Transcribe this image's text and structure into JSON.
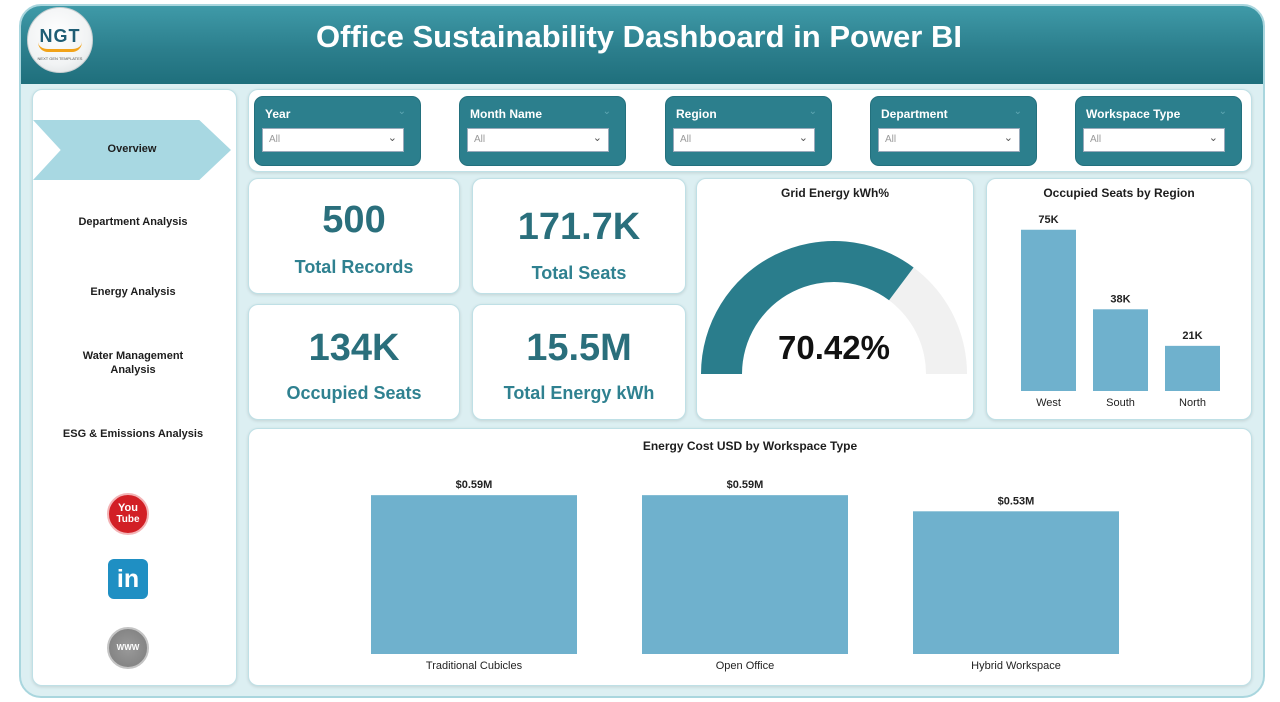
{
  "header": {
    "title": "Office Sustainability Dashboard in Power BI",
    "logo_text": "NGT",
    "logo_subtext": "NEXT GEN TEMPLATES"
  },
  "sidebar": {
    "items": [
      {
        "label": "Overview",
        "active": true
      },
      {
        "label": "Department Analysis"
      },
      {
        "label": "Energy Analysis"
      },
      {
        "label": "Water Management Analysis"
      },
      {
        "label": "ESG & Emissions Analysis"
      }
    ],
    "social": {
      "youtube_top": "You",
      "youtube_bottom": "Tube",
      "linkedin": "in",
      "web": "WWW"
    }
  },
  "filters": [
    {
      "label": "Year",
      "value": "All"
    },
    {
      "label": "Month Name",
      "value": "All"
    },
    {
      "label": "Region",
      "value": "All"
    },
    {
      "label": "Department",
      "value": "All"
    },
    {
      "label": "Workspace Type",
      "value": "All"
    }
  ],
  "kpis": {
    "total_records": {
      "value": "500",
      "label": "Total Records"
    },
    "total_seats": {
      "value": "171.7K",
      "label": "Total Seats"
    },
    "occupied_seats": {
      "value": "134K",
      "label": "Occupied Seats"
    },
    "total_energy": {
      "value": "15.5M",
      "label": "Total Energy kWh"
    }
  },
  "colors": {
    "accent": "#2c7f8d",
    "bar": "#6fb1cd",
    "gauge_fill": "#2a7d8c",
    "gauge_track": "#f1f1f1"
  },
  "chart_data": [
    {
      "type": "gauge",
      "title": "Grid Energy kWh%",
      "value": 70.42,
      "max": 100,
      "display": "70.42%"
    },
    {
      "type": "bar",
      "title": "Occupied Seats by Region",
      "categories": [
        "West",
        "South",
        "North"
      ],
      "values": [
        75000,
        38000,
        21000
      ],
      "data_labels": [
        "75K",
        "38K",
        "21K"
      ],
      "ylim": [
        0,
        80000
      ]
    },
    {
      "type": "bar",
      "title": "Energy Cost USD by Workspace Type",
      "categories": [
        "Traditional Cubicles",
        "Open Office",
        "Hybrid Workspace"
      ],
      "values": [
        0.59,
        0.59,
        0.53
      ],
      "data_labels": [
        "$0.59M",
        "$0.59M",
        "$0.53M"
      ],
      "ylim": [
        0,
        0.65
      ]
    }
  ]
}
